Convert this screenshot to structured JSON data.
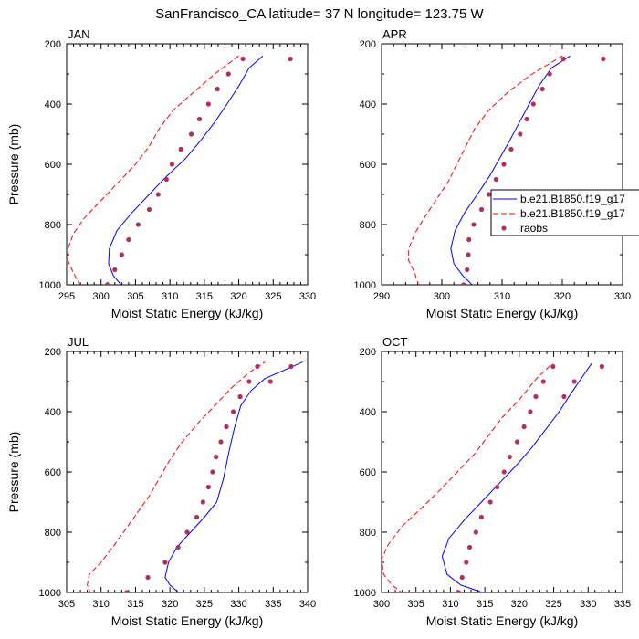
{
  "title": "SanFrancisco_CA  latitude= 37 N longitude= 123.75 W",
  "chart_data": [
    {
      "type": "line",
      "panel_label": "JAN",
      "xlabel": "Moist Static Energy (kJ/kg)",
      "ylabel": "Pressure (mb)",
      "xlim": [
        295,
        330
      ],
      "ylim": [
        1000,
        200
      ],
      "xticks": [
        295,
        300,
        305,
        310,
        315,
        320,
        325,
        330
      ],
      "yticks": [
        200,
        400,
        600,
        800,
        1000
      ],
      "series": [
        {
          "name": "b.e21.B1850.f19_g17",
          "style": "solid",
          "color": "#0000ff",
          "x": [
            303.1,
            301.8,
            301.1,
            301.2,
            302.3,
            304.5,
            307.0,
            309.5,
            312.3,
            314.5,
            316.5,
            318.3,
            320.0,
            321.5,
            323.5
          ],
          "y": [
            1005,
            970,
            930,
            880,
            820,
            760,
            700,
            640,
            580,
            520,
            460,
            400,
            340,
            280,
            240
          ]
        },
        {
          "name": "b.e21.B1850.f19_g17",
          "style": "dashed",
          "color": "#ff0000",
          "x": [
            297.0,
            296.0,
            295.2,
            295.2,
            296.0,
            297.5,
            300.0,
            302.5,
            305.0,
            307.0,
            308.5,
            310.5,
            313.5,
            316.5,
            320.0
          ],
          "y": [
            1005,
            960,
            920,
            880,
            830,
            780,
            720,
            660,
            600,
            540,
            480,
            420,
            360,
            300,
            240
          ]
        },
        {
          "name": "raobs",
          "style": "markers",
          "color": "#b03060",
          "x": [
            300.9,
            302.0,
            303.0,
            304.0,
            305.4,
            307.0,
            308.3,
            309.5,
            310.3,
            311.6,
            313.1,
            314.3,
            315.6,
            316.9,
            318.5,
            320.6,
            327.5
          ],
          "y": [
            1000,
            950,
            900,
            850,
            800,
            750,
            700,
            650,
            600,
            550,
            500,
            450,
            400,
            350,
            300,
            250,
            250
          ]
        }
      ]
    },
    {
      "type": "line",
      "panel_label": "APR",
      "xlabel": "Moist Static Energy (kJ/kg)",
      "ylabel": "",
      "xlim": [
        290,
        330
      ],
      "ylim": [
        1000,
        200
      ],
      "xticks": [
        290,
        300,
        310,
        320,
        330
      ],
      "yticks": [
        200,
        400,
        600,
        800,
        1000
      ],
      "legend": {
        "placement": "right",
        "entries": [
          "b.e21.B1850.f19_g17",
          "b.e21.B1850.f19_g17",
          "raobs"
        ]
      },
      "series": [
        {
          "name": "b.e21.B1850.f19_g17",
          "style": "solid",
          "color": "#0000ff",
          "x": [
            305.3,
            303.5,
            302.0,
            301.5,
            302.2,
            303.8,
            305.9,
            307.9,
            309.6,
            311.3,
            312.9,
            314.5,
            316.1,
            318.2,
            321.3
          ],
          "y": [
            1005,
            970,
            930,
            880,
            820,
            760,
            700,
            640,
            580,
            520,
            460,
            400,
            340,
            280,
            240
          ]
        },
        {
          "name": "b.e21.B1850.f19_g17",
          "style": "dashed",
          "color": "#ff0000",
          "x": [
            296.2,
            295.5,
            294.5,
            294.5,
            295.5,
            297.0,
            299.0,
            301.0,
            302.5,
            304.0,
            305.5,
            307.8,
            311.0,
            315.0,
            320.0
          ],
          "y": [
            1005,
            960,
            920,
            880,
            830,
            780,
            720,
            660,
            600,
            540,
            480,
            420,
            360,
            300,
            240
          ]
        },
        {
          "name": "raobs",
          "style": "markers",
          "color": "#b03060",
          "x": [
            303.6,
            304.2,
            304.4,
            304.5,
            305.3,
            306.6,
            307.8,
            309.0,
            310.3,
            311.5,
            313.0,
            314.1,
            315.2,
            316.7,
            317.9,
            320.2,
            326.8
          ],
          "y": [
            1000,
            950,
            900,
            850,
            800,
            750,
            700,
            650,
            600,
            550,
            500,
            450,
            400,
            350,
            300,
            250,
            250
          ]
        }
      ]
    },
    {
      "type": "line",
      "panel_label": "JUL",
      "xlabel": "Moist Static Energy (kJ/kg)",
      "ylabel": "Pressure (mb)",
      "xlim": [
        305,
        340
      ],
      "ylim": [
        1000,
        200
      ],
      "xticks": [
        305,
        310,
        315,
        320,
        325,
        330,
        335,
        340
      ],
      "yticks": [
        200,
        400,
        600,
        800,
        1000
      ],
      "series": [
        {
          "name": "b.e21.B1850.f19_g17",
          "style": "solid",
          "color": "#0000ff",
          "x": [
            321.5,
            320.0,
            319.3,
            319.8,
            321.0,
            323.0,
            325.0,
            326.8,
            327.8,
            328.5,
            329.3,
            330.3,
            331.8,
            333.8,
            336.3,
            339.3
          ],
          "y": [
            1005,
            975,
            950,
            900,
            850,
            800,
            750,
            700,
            620,
            540,
            460,
            380,
            330,
            290,
            265,
            235
          ]
        },
        {
          "name": "b.e21.B1850.f19_g17",
          "style": "dashed",
          "color": "#ff0000",
          "x": [
            308.5,
            308.0,
            308.3,
            310.0,
            312.0,
            314.5,
            317.0,
            318.5,
            320.0,
            321.8,
            324.0,
            326.5,
            329.0,
            331.5,
            333.8
          ],
          "y": [
            1005,
            975,
            940,
            900,
            840,
            760,
            680,
            620,
            560,
            500,
            440,
            380,
            320,
            270,
            235
          ]
        },
        {
          "name": "raobs",
          "style": "markers",
          "color": "#b03060",
          "x": [
            313.7,
            316.8,
            319.3,
            321.2,
            322.5,
            323.9,
            324.8,
            325.6,
            326.2,
            326.7,
            327.4,
            328.2,
            329.2,
            330.2,
            331.5,
            332.7,
            334.6,
            337.6
          ],
          "y": [
            1000,
            950,
            900,
            850,
            800,
            750,
            700,
            650,
            600,
            550,
            500,
            450,
            400,
            350,
            300,
            250,
            300,
            250
          ]
        }
      ]
    },
    {
      "type": "line",
      "panel_label": "OCT",
      "xlabel": "Moist Static Energy (kJ/kg)",
      "ylabel": "",
      "xlim": [
        300,
        335
      ],
      "ylim": [
        1000,
        200
      ],
      "xticks": [
        300,
        305,
        310,
        315,
        320,
        325,
        330,
        335
      ],
      "yticks": [
        200,
        400,
        600,
        800,
        1000
      ],
      "series": [
        {
          "name": "b.e21.B1850.f19_g17",
          "style": "solid",
          "color": "#0000ff",
          "x": [
            315.3,
            311.5,
            309.5,
            308.8,
            309.8,
            312.0,
            314.5,
            317.0,
            319.5,
            321.8,
            323.8,
            325.8,
            327.5,
            330.5
          ],
          "y": [
            1005,
            975,
            940,
            880,
            820,
            760,
            700,
            640,
            580,
            520,
            460,
            400,
            340,
            240
          ]
        },
        {
          "name": "b.e21.B1850.f19_g17",
          "style": "dashed",
          "color": "#ff0000",
          "x": [
            303.2,
            301.5,
            300.3,
            300.0,
            301.0,
            303.0,
            305.8,
            308.5,
            311.0,
            313.5,
            315.5,
            317.5,
            320.0,
            322.5,
            324.8
          ],
          "y": [
            1005,
            975,
            940,
            890,
            840,
            780,
            720,
            660,
            600,
            540,
            480,
            420,
            360,
            290,
            240
          ]
        },
        {
          "name": "raobs",
          "style": "markers",
          "color": "#b03060",
          "x": [
            311.2,
            311.7,
            312.3,
            312.8,
            313.7,
            314.5,
            315.8,
            316.8,
            317.8,
            318.6,
            319.7,
            320.7,
            321.6,
            322.4,
            323.5,
            324.9,
            326.5,
            328.0,
            332.0
          ],
          "y": [
            1000,
            950,
            900,
            850,
            800,
            750,
            700,
            650,
            600,
            550,
            500,
            450,
            400,
            350,
            300,
            250,
            350,
            300,
            250
          ]
        }
      ]
    }
  ],
  "legend": {
    "entries": [
      {
        "label": "b.e21.B1850.f19_g17",
        "style": "solid",
        "color": "#0000ff"
      },
      {
        "label": "b.e21.B1850.f19_g17",
        "style": "dashed",
        "color": "#ff0000"
      },
      {
        "label": "raobs",
        "style": "markers",
        "color": "#b03060"
      }
    ]
  }
}
